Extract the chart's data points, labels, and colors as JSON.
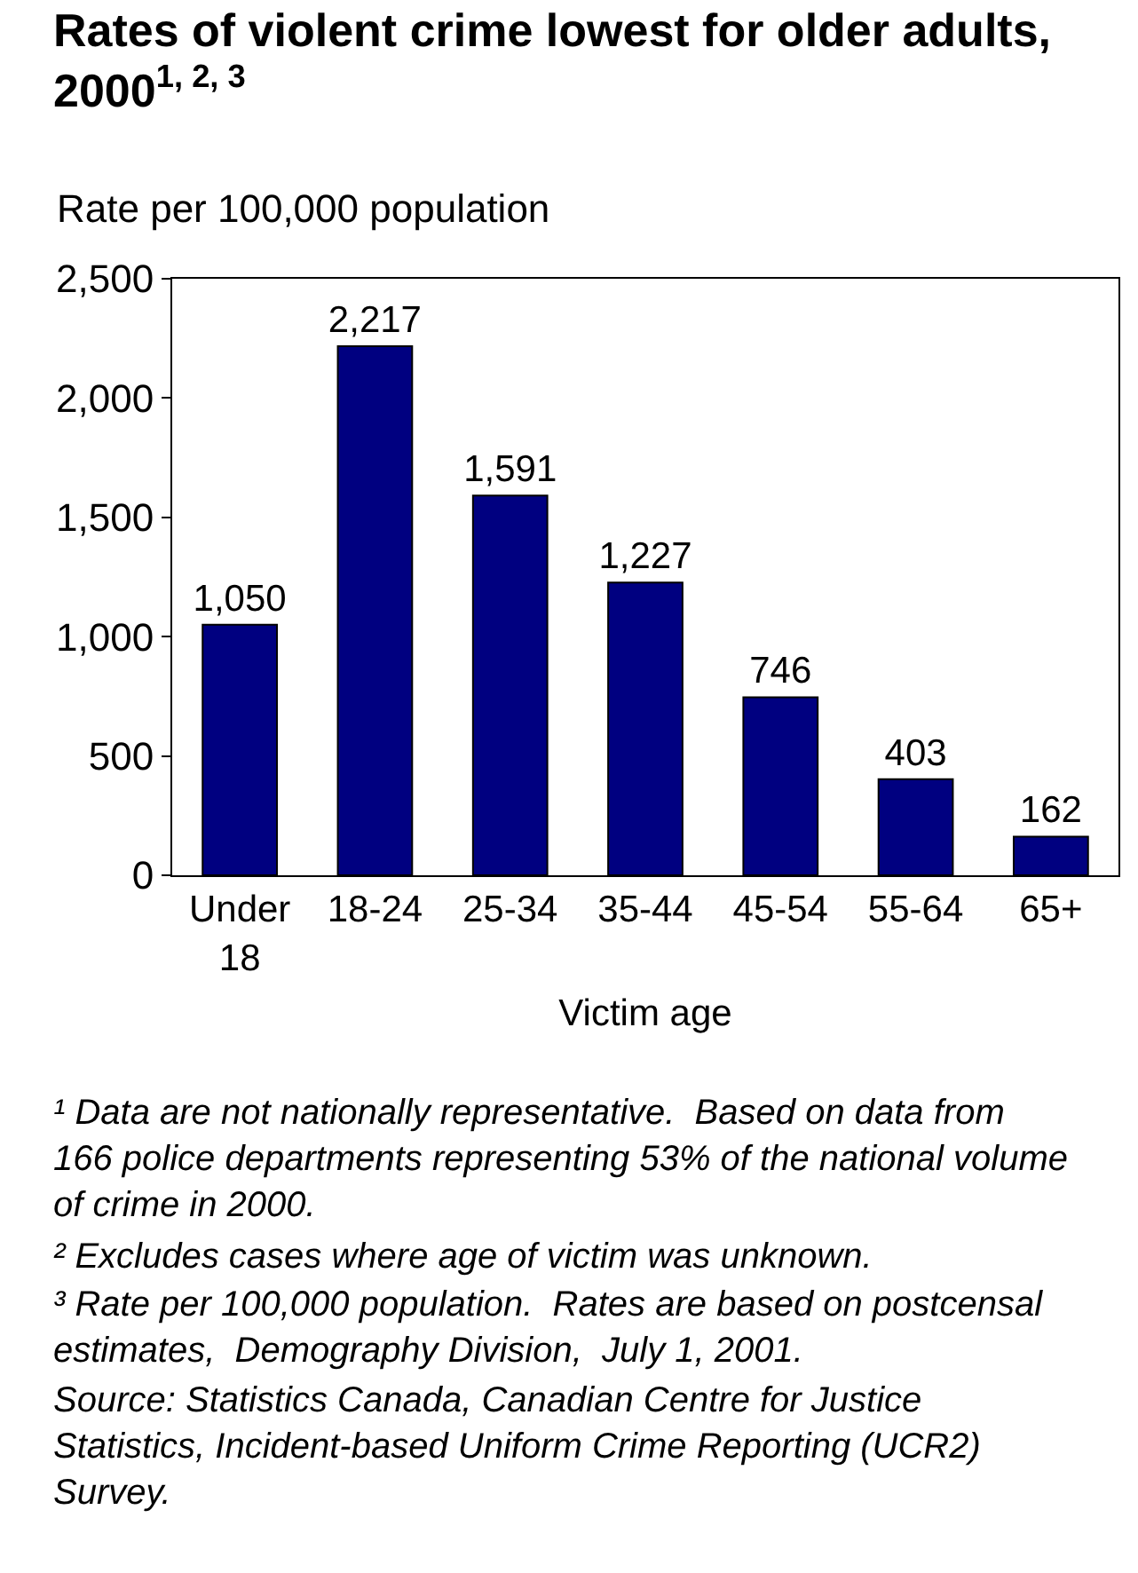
{
  "chart_data": {
    "type": "bar",
    "title": "Rates of violent crime lowest for older adults, 2000$^{1, 2, 3}$",
    "ylabel": "Rate per 100,000 population",
    "xlabel": "Victim age",
    "categories": [
      "Under 18",
      "18-24",
      "25-34",
      "35-44",
      "45-54",
      "55-64",
      "65+"
    ],
    "values": [
      1050,
      2217,
      1591,
      1227,
      746,
      403,
      162
    ],
    "value_labels": [
      "1,050",
      "2,217",
      "1,591",
      "1,227",
      "746",
      "403",
      "162"
    ],
    "color": "#000080",
    "ylim": [
      0,
      2500
    ],
    "yticks": [
      0,
      {
        "value": 500,
        "label": "500"
      },
      {
        "value": 1000,
        "label": "1,000"
      },
      {
        "value": 1500,
        "label": "1,500"
      },
      {
        "value": 2000,
        "label": "2,000"
      },
      {
        "value": 2500,
        "label": "2,500"
      }
    ],
    "grid": false,
    "annotations": [
      "¹ Data are not nationally representative.  Based on data from 166 police departments representing 53% of the national volume of crime in 2000.",
      "² Excludes cases where age of victim was unknown.",
      "³ Rate per 100,000 population.  Rates are based on postcensal estimates,  Demography Division,  July 1, 2001.",
      "Source: Statistics Canada, Canadian Centre for Justice Statistics, Incident-based Uniform Crime Reporting (UCR2) Survey."
    ]
  }
}
